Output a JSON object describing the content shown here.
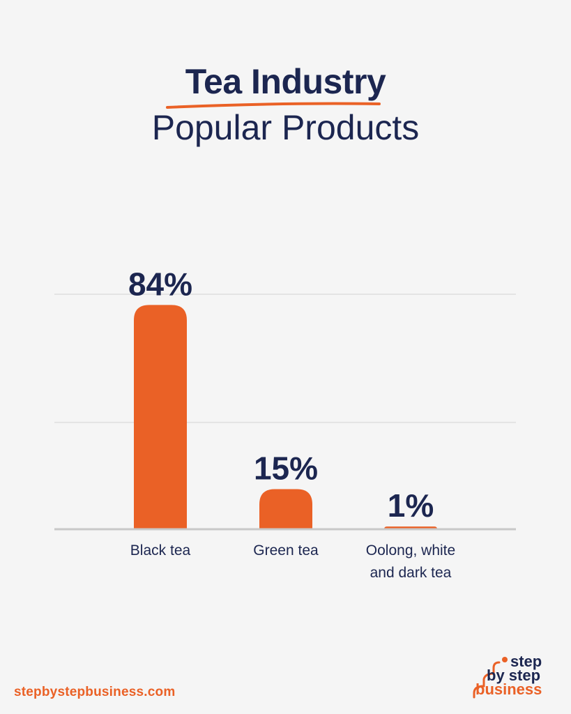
{
  "header": {
    "title": "Tea Industry",
    "subtitle": "Popular Products"
  },
  "footer": {
    "url": "stepbystepbusiness.com"
  },
  "logo": {
    "line1": "step",
    "line2": "by step",
    "line3": "business"
  },
  "colors": {
    "bar": "#ea6126",
    "text": "#1c2650",
    "gridline": "#e3e3e3",
    "axis": "#c8c8c8",
    "background": "#f5f5f5"
  },
  "chart_data": {
    "type": "bar",
    "title": "Tea Industry",
    "subtitle": "Popular Products",
    "categories": [
      [
        "Black tea"
      ],
      [
        "Green tea"
      ],
      [
        "Oolong, white",
        "and dark tea"
      ]
    ],
    "values": [
      84,
      15,
      1
    ],
    "value_labels": [
      "84%",
      "15%",
      "1%"
    ],
    "ylim": [
      0,
      88
    ],
    "grid": true,
    "gridlines": [
      40,
      88
    ]
  }
}
